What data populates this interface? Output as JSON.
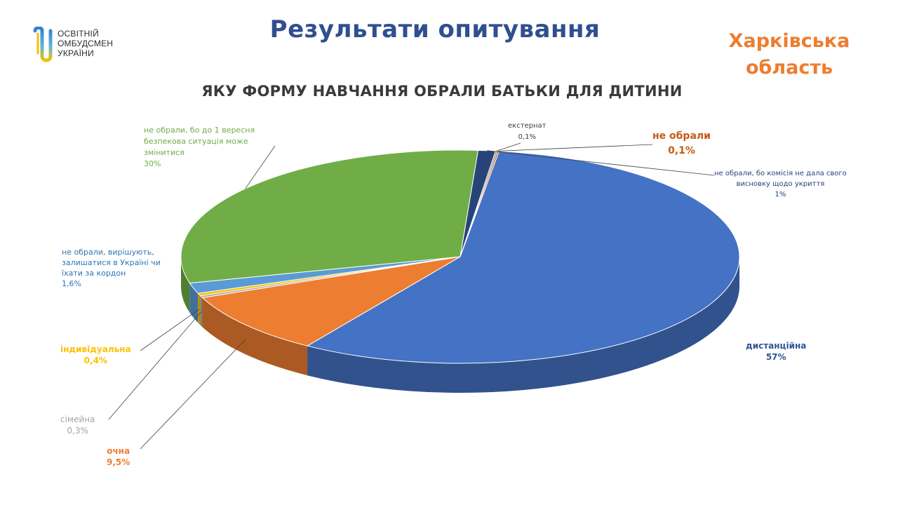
{
  "header": {
    "logo_lines": [
      "ОСВІТНІЙ",
      "ОМБУДСМЕН",
      "УКРАЇНИ"
    ],
    "title": "Результати опитування",
    "region_line1": "Харківська",
    "region_line2": "область"
  },
  "chart_data": {
    "type": "pie",
    "style": "3d",
    "title": "ЯКУ ФОРМУ НАВЧАННЯ ОБРАЛИ БАТЬКИ ДЛЯ ДИТИНИ",
    "slices": [
      {
        "label": "дистанційна",
        "value": 57,
        "value_label": "57%",
        "color": "#4472c4",
        "text_color": "#2f5597"
      },
      {
        "label": "очна",
        "value": 9.5,
        "value_label": "9,5%",
        "color": "#ed7d31",
        "text_color": "#ed7d31"
      },
      {
        "label": "сімейна",
        "value": 0.3,
        "value_label": "0,3%",
        "color": "#a5a5a5",
        "text_color": "#a5a5a5"
      },
      {
        "label": "індивідуальна",
        "value": 0.4,
        "value_label": "0,4%",
        "color": "#ffc000",
        "text_color": "#ffc000"
      },
      {
        "label": "не обрали, вирішують, залишатися в Україні чи їхати за кордон",
        "label_lines": [
          "не обрали, вирішують,",
          "залишатися в Україні чи",
          "їхати за кордон"
        ],
        "value": 1.6,
        "value_label": "1,6%",
        "color": "#5b9bd5",
        "text_color": "#2e75b6"
      },
      {
        "label": "не обрали, бо до 1 вересня безпекова ситуація може змінитися",
        "label_lines": [
          "не обрали, бо до 1 вересня",
          "безпекова ситуація може",
          "змінитися"
        ],
        "value": 30,
        "value_label": "30%",
        "color": "#70ad47",
        "text_color": "#70ad47"
      },
      {
        "label": "не обрали, бо комісія не дала свого висновку щодо укриття",
        "label_lines": [
          "не обрали, бо комісія  не дала свого",
          "висновку  щодо укриття"
        ],
        "value": 1,
        "value_label": "1%",
        "color": "#264478",
        "text_color": "#264478"
      },
      {
        "label": "екстернат",
        "value": 0.1,
        "value_label": "0,1%",
        "color": "#7f7f7f",
        "text_color": "#404040"
      },
      {
        "label": "не обрали",
        "value": 0.1,
        "value_label": "0,1%",
        "color": "#c55a11",
        "text_color": "#c55a11"
      }
    ]
  }
}
